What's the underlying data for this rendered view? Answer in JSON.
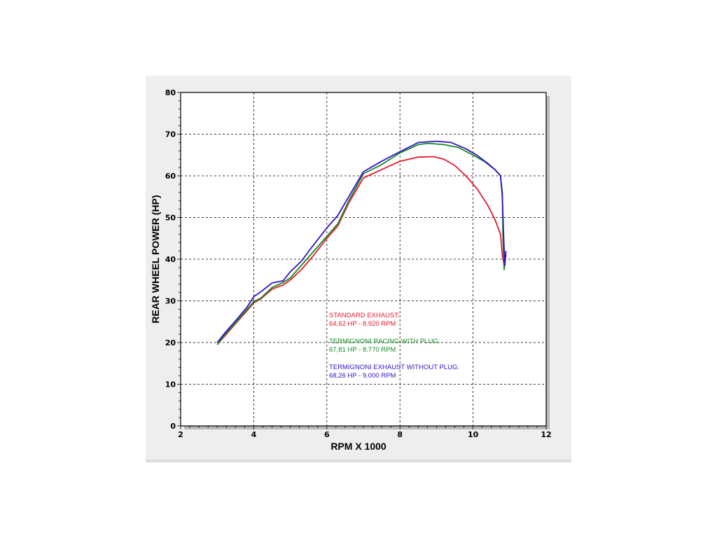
{
  "chart_data": {
    "type": "line",
    "xlabel": "RPM X 1000",
    "ylabel": "REAR WHEEL POWER (HP)",
    "xlim": [
      2,
      12
    ],
    "ylim": [
      0,
      80
    ],
    "xticks": [
      2,
      4,
      6,
      8,
      10,
      12
    ],
    "yticks": [
      0,
      10,
      20,
      30,
      40,
      50,
      60,
      70,
      80
    ],
    "grid": true,
    "series": [
      {
        "name": "STANDARD EXHAUST",
        "color": "#e8192c",
        "points": [
          [
            3.0,
            19.5
          ],
          [
            3.2,
            21.5
          ],
          [
            3.5,
            24.5
          ],
          [
            3.8,
            27.5
          ],
          [
            4.0,
            29.5
          ],
          [
            4.2,
            30.5
          ],
          [
            4.5,
            32.8
          ],
          [
            4.8,
            33.8
          ],
          [
            5.0,
            35.0
          ],
          [
            5.3,
            37.5
          ],
          [
            5.6,
            40.5
          ],
          [
            6.0,
            45.0
          ],
          [
            6.3,
            48.0
          ],
          [
            6.6,
            53.5
          ],
          [
            7.0,
            59.5
          ],
          [
            7.5,
            61.5
          ],
          [
            8.0,
            63.5
          ],
          [
            8.5,
            64.5
          ],
          [
            8.92,
            64.6
          ],
          [
            9.2,
            64.0
          ],
          [
            9.5,
            62.5
          ],
          [
            9.8,
            60.0
          ],
          [
            10.1,
            57.0
          ],
          [
            10.4,
            53.0
          ],
          [
            10.6,
            49.5
          ],
          [
            10.75,
            46.0
          ],
          [
            10.8,
            41.0
          ],
          [
            10.85,
            38.5
          ],
          [
            10.9,
            41.0
          ]
        ]
      },
      {
        "name": "TERMIGNONI RACING WITH PLUG",
        "color": "#128a1e",
        "points": [
          [
            3.0,
            19.5
          ],
          [
            3.2,
            21.8
          ],
          [
            3.5,
            24.7
          ],
          [
            3.8,
            27.8
          ],
          [
            4.0,
            29.8
          ],
          [
            4.2,
            30.7
          ],
          [
            4.5,
            33.2
          ],
          [
            4.8,
            34.4
          ],
          [
            5.0,
            35.5
          ],
          [
            5.3,
            38.5
          ],
          [
            5.6,
            41.5
          ],
          [
            6.0,
            45.5
          ],
          [
            6.3,
            48.5
          ],
          [
            6.6,
            54.0
          ],
          [
            7.0,
            60.5
          ],
          [
            7.5,
            62.7
          ],
          [
            8.0,
            65.5
          ],
          [
            8.5,
            67.5
          ],
          [
            8.77,
            67.8
          ],
          [
            9.2,
            67.5
          ],
          [
            9.6,
            66.8
          ],
          [
            10.0,
            65.0
          ],
          [
            10.3,
            63.5
          ],
          [
            10.6,
            61.5
          ],
          [
            10.75,
            60.0
          ],
          [
            10.8,
            56.0
          ],
          [
            10.82,
            45.0
          ],
          [
            10.85,
            37.5
          ],
          [
            10.88,
            40.0
          ]
        ]
      },
      {
        "name": "TERMIGNONI EXHAUST WITHOUT PLUG",
        "color": "#3311cc",
        "points": [
          [
            3.0,
            20.0
          ],
          [
            3.2,
            22.2
          ],
          [
            3.5,
            25.2
          ],
          [
            3.8,
            28.3
          ],
          [
            4.0,
            31.0
          ],
          [
            4.2,
            32.2
          ],
          [
            4.5,
            34.3
          ],
          [
            4.8,
            34.8
          ],
          [
            5.0,
            37.0
          ],
          [
            5.3,
            39.5
          ],
          [
            5.6,
            43.0
          ],
          [
            6.0,
            47.5
          ],
          [
            6.3,
            50.5
          ],
          [
            6.6,
            55.0
          ],
          [
            7.0,
            61.0
          ],
          [
            7.5,
            63.5
          ],
          [
            8.0,
            65.8
          ],
          [
            8.5,
            68.0
          ],
          [
            9.0,
            68.3
          ],
          [
            9.4,
            68.0
          ],
          [
            9.8,
            66.5
          ],
          [
            10.1,
            65.0
          ],
          [
            10.4,
            63.0
          ],
          [
            10.6,
            61.5
          ],
          [
            10.75,
            60.0
          ],
          [
            10.8,
            55.0
          ],
          [
            10.84,
            45.0
          ],
          [
            10.87,
            38.5
          ],
          [
            10.9,
            42.0
          ]
        ]
      }
    ],
    "annotations": [
      {
        "line1": "STANDARD EXHAUST:",
        "line2": "64,62 HP - 8.920 RPM",
        "color": "#e8192c"
      },
      {
        "line1": "TERMIGNONI RACING WITH PLUG:",
        "line2": "67,81 HP - 8.770 RPM",
        "color": "#128a1e"
      },
      {
        "line1": "TERMIGNONI EXHAUST WITHOUT PLUG:",
        "line2": "68,26 HP - 9.000 RPM",
        "color": "#3311cc"
      }
    ]
  }
}
